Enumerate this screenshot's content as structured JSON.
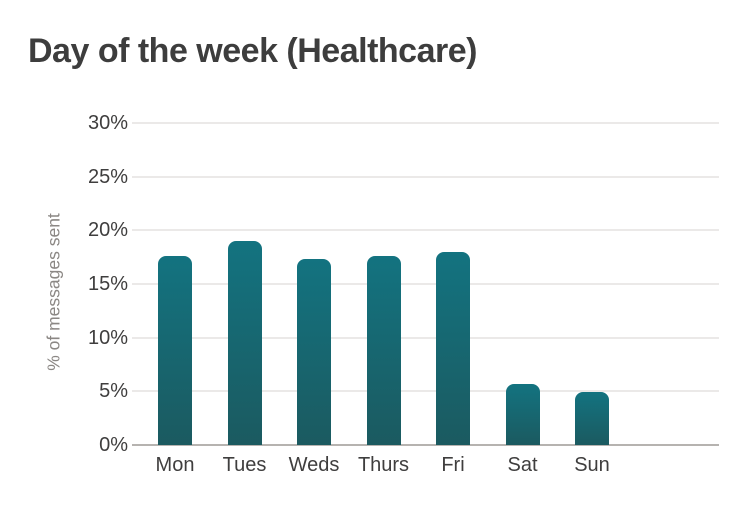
{
  "header": {
    "title": "Day of the week (Healthcare)"
  },
  "chart_data": {
    "type": "bar",
    "title": "Day of the week (Healthcare)",
    "categories": [
      "Mon",
      "Tues",
      "Weds",
      "Thurs",
      "Fri",
      "Sat",
      "Sun"
    ],
    "values": [
      17.6,
      19.0,
      17.3,
      17.6,
      18.0,
      5.7,
      4.9
    ],
    "xlabel": "",
    "ylabel": "% of messages sent",
    "ylim": [
      0,
      30
    ],
    "ytick_step": 5,
    "ytick_labels": [
      "0%",
      "5%",
      "10%",
      "15%",
      "20%",
      "25%",
      "30%"
    ],
    "grid": true,
    "legend": "none",
    "colors": {
      "bar_gradient_top": "#137380",
      "bar_gradient_bottom": "#1b5a60",
      "gridline": "#ebe9e8",
      "baseline": "#b6b3b0",
      "tick_label": "#3f3e3e",
      "axis_label": "#8b8784",
      "title": "#3d3d3d",
      "background": "#ffffff"
    }
  }
}
